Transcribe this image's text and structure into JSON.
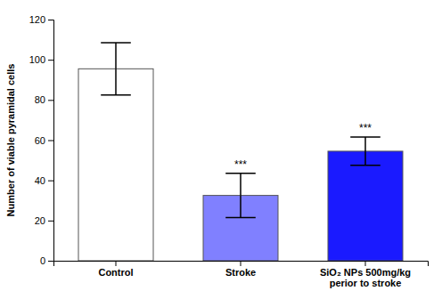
{
  "chart_data": {
    "type": "bar",
    "categories": [
      "Control",
      "Stroke",
      "SiO₂ NPs 500mg/kg\nperior to stroke"
    ],
    "values": [
      95.5,
      32.5,
      54.5
    ],
    "errors_upper": [
      13.0,
      11.0,
      7.0
    ],
    "errors_lower": [
      13.0,
      11.0,
      7.0
    ],
    "colors": [
      "#ffffff",
      "#8080ff",
      "#1a1aff"
    ],
    "annotations": [
      null,
      "***",
      "***"
    ],
    "ylabel": "Number of viable pyramidal cells",
    "ylim": [
      0,
      120
    ],
    "yticks": [
      0,
      20,
      40,
      60,
      80,
      100,
      120
    ],
    "grid": false
  }
}
